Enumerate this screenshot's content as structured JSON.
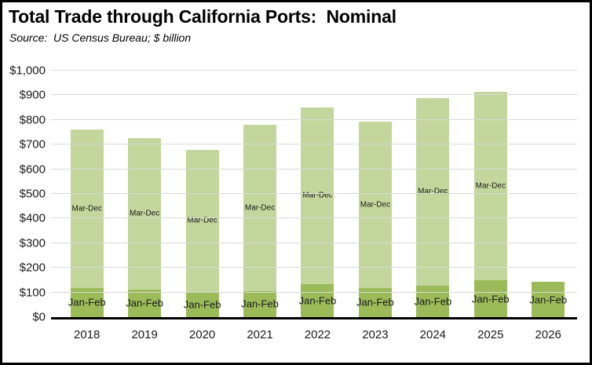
{
  "header": {
    "title": "Total Trade through California Ports:  Nominal",
    "subtitle": "Source:  US Census Bureau; $ billion"
  },
  "chart_data": {
    "type": "bar",
    "stacked": true,
    "title": "Total Trade through California Ports:  Nominal",
    "subtitle": "Source:  US Census Bureau; $ billion",
    "units": "$ billion, nominal",
    "categories": [
      "2018",
      "2019",
      "2020",
      "2021",
      "2022",
      "2023",
      "2024",
      "2025",
      "2026"
    ],
    "series": [
      {
        "name": "Jan-Feb",
        "color": "#9bbb59",
        "values": [
          118,
          112,
          102,
          106,
          134,
          118,
          127,
          149,
          143
        ]
      },
      {
        "name": "Mar-Dec",
        "color": "#c3d69b",
        "values": [
          644,
          614,
          577,
          673,
          718,
          675,
          762,
          766,
          0
        ]
      }
    ],
    "totals": [
      762,
      726,
      679,
      779,
      852,
      793,
      889,
      915,
      143
    ],
    "ylim": [
      0,
      1000
    ],
    "ytick_step": 100,
    "yticks": [
      {
        "value": 0,
        "label": "$0"
      },
      {
        "value": 100,
        "label": "$100"
      },
      {
        "value": 200,
        "label": "$200"
      },
      {
        "value": 300,
        "label": "$300"
      },
      {
        "value": 400,
        "label": "$400"
      },
      {
        "value": 500,
        "label": "$500"
      },
      {
        "value": 600,
        "label": "$600"
      },
      {
        "value": 700,
        "label": "$700"
      },
      {
        "value": 800,
        "label": "$800"
      },
      {
        "value": 900,
        "label": "$900"
      },
      {
        "value": 1000,
        "label": "$1,000"
      }
    ],
    "grid": true,
    "legend_position": "none",
    "annotation_style": "series names labeled inside bar segments"
  },
  "colors": {
    "jan_feb_segment": "#9bbb59",
    "mar_dec_segment": "#c3d69b",
    "gridline": "#d9d9d9",
    "axis_line": "#000000",
    "frame_border": "#000000",
    "background": "#ffffff",
    "text": "#1a1a1a"
  }
}
